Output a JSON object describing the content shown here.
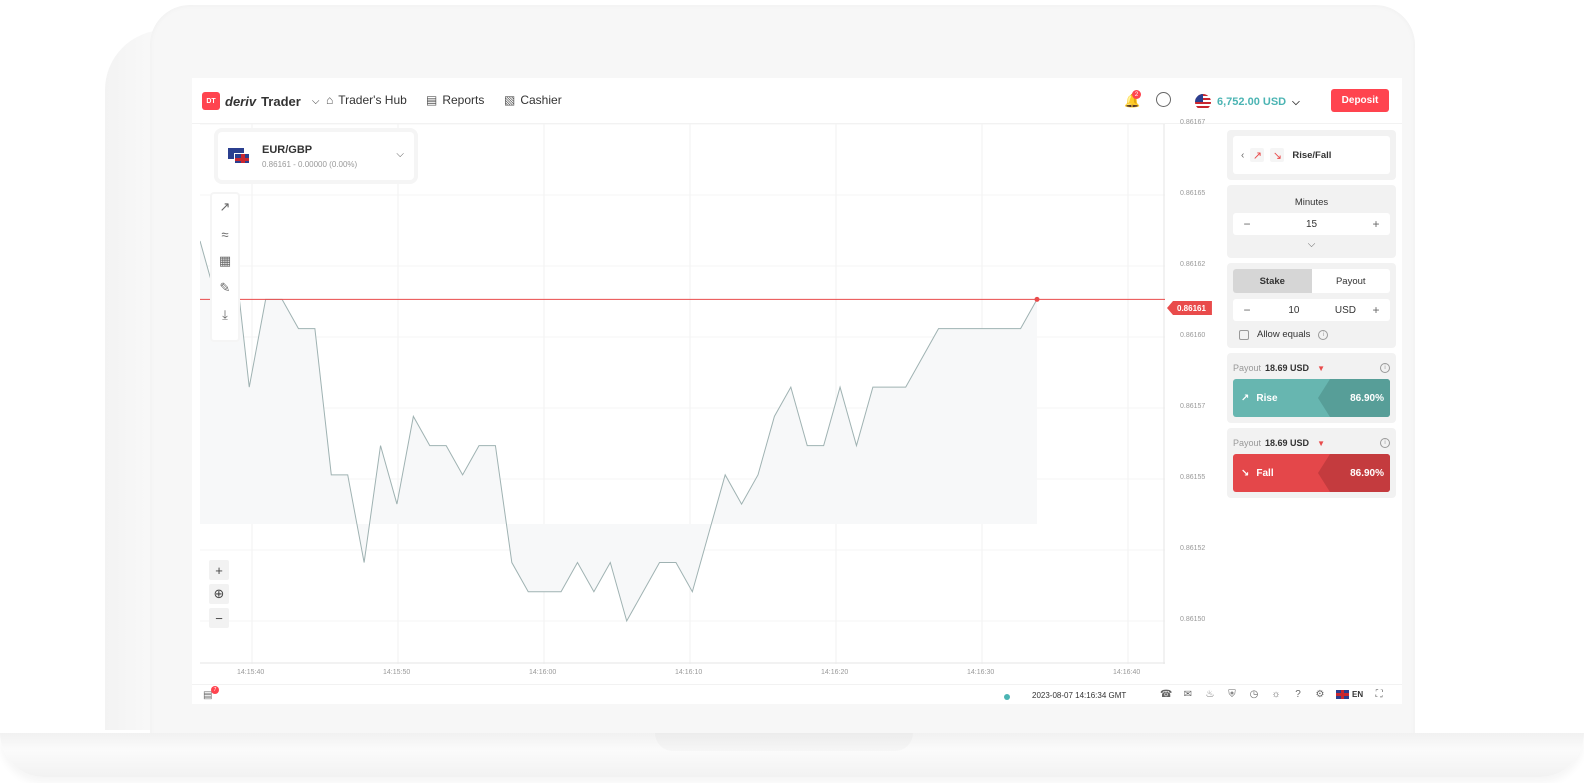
{
  "header": {
    "brand": "Trader",
    "brand_logo": "DT",
    "nav": [
      {
        "label": "Trader's Hub",
        "icon": "home-icon"
      },
      {
        "label": "Reports",
        "icon": "reports-icon"
      },
      {
        "label": "Cashier",
        "icon": "cashier-icon"
      }
    ],
    "notifications_count": "2",
    "balance": "6,752.00 USD",
    "deposit_label": "Deposit"
  },
  "market": {
    "symbol": "EUR/GBP",
    "quote": "0.86161 - 0.00000 (0.00%)"
  },
  "chart_data": {
    "type": "line",
    "series": [
      {
        "values": [
          0.86163,
          0.86161,
          0.86163,
          0.86158,
          0.86161,
          0.86161,
          0.8616,
          0.8616,
          0.86155,
          0.86155,
          0.86152,
          0.86156,
          0.86154,
          0.86157,
          0.86156,
          0.86156,
          0.86155,
          0.86156,
          0.86156,
          0.86152,
          0.86151,
          0.86151,
          0.86151,
          0.86152,
          0.86151,
          0.86152,
          0.8615,
          0.86151,
          0.86152,
          0.86152,
          0.86151,
          0.86153,
          0.86155,
          0.86154,
          0.86155,
          0.86157,
          0.86158,
          0.86156,
          0.86156,
          0.86158,
          0.86156,
          0.86158,
          0.86158,
          0.86158,
          0.86159,
          0.8616,
          0.8616,
          0.8616,
          0.8616,
          0.8616,
          0.8616,
          0.86161
        ]
      }
    ],
    "current_price": "0.86161",
    "y_ticks": [
      "0.86167",
      "0.86165",
      "0.86162",
      "0.86160",
      "0.86157",
      "0.86155",
      "0.86152",
      "0.86150"
    ],
    "x_ticks": [
      "14:15:40",
      "14:15:50",
      "14:16:00",
      "14:16:10",
      "14:16:20",
      "14:16:30",
      "14:16:40"
    ],
    "ylim": [
      0.8615,
      0.86167
    ],
    "grid": true
  },
  "footer": {
    "positions_count": "7",
    "server_time": "2023-08-07 14:16:34 GMT",
    "language": "EN"
  },
  "trade": {
    "contract_type": "Rise/Fall",
    "duration_unit": "Minutes",
    "duration_value": "15",
    "stake_tab": "Stake",
    "payout_tab": "Payout",
    "amount": "10",
    "currency": "USD",
    "allow_equals": "Allow equals",
    "payout_label": "Payout",
    "rise_payout": "18.69 USD",
    "fall_payout": "18.69 USD",
    "rise_label": "Rise",
    "fall_label": "Fall",
    "rise_pct": "86.90%",
    "fall_pct": "86.90%"
  },
  "colors": {
    "accent": "#ff444f",
    "rise": "#67b6b0",
    "fall": "#e4474a",
    "balance": "#4bb4b3"
  }
}
